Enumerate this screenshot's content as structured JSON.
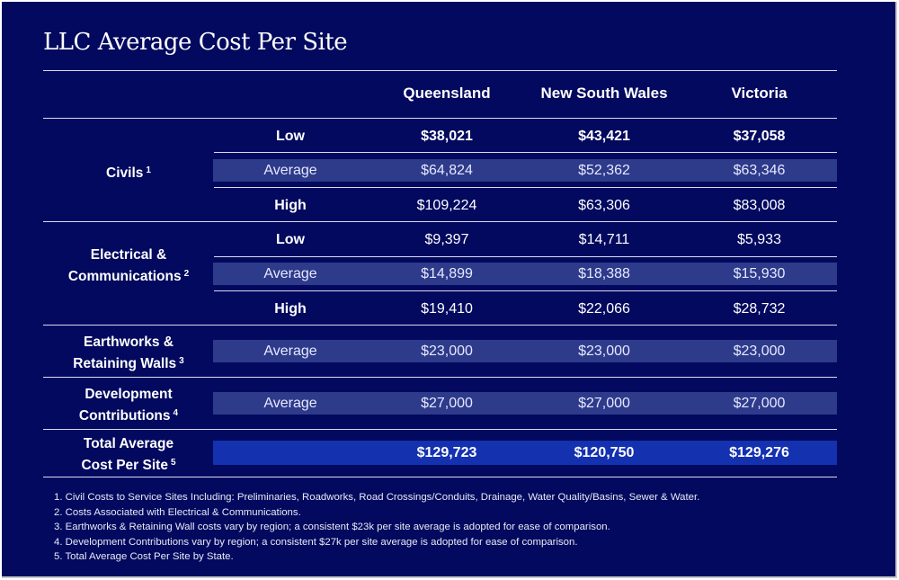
{
  "title": "LLC Average Cost Per Site",
  "columns": [
    "Queensland",
    "New South Wales",
    "Victoria"
  ],
  "groups": {
    "civils": {
      "label": "Civils",
      "note": "1"
    },
    "electrical": {
      "label_line1": "Electrical &",
      "label_line2": "Communications",
      "note": "2"
    },
    "earthworks": {
      "label_line1": "Earthworks &",
      "label_line2": "Retaining Walls",
      "note": "3"
    },
    "development": {
      "label_line1": "Development",
      "label_line2": "Contributions",
      "note": "4"
    },
    "total": {
      "label_line1": "Total Average",
      "label_line2": "Cost Per Site",
      "note": "5"
    }
  },
  "rows": [
    {
      "label": "Low",
      "values": [
        "$38,021",
        "$43,421",
        "$37,058"
      ]
    },
    {
      "label": "Average",
      "values": [
        "$64,824",
        "$52,362",
        "$63,346"
      ]
    },
    {
      "label": "High",
      "values": [
        "$109,224",
        "$63,306",
        "$83,008"
      ]
    },
    {
      "label": "Low",
      "values": [
        "$9,397",
        "$14,711",
        "$5,933"
      ]
    },
    {
      "label": "Average",
      "values": [
        "$14,899",
        "$18,388",
        "$15,930"
      ]
    },
    {
      "label": "High",
      "values": [
        "$19,410",
        "$22,066",
        "$28,732"
      ]
    },
    {
      "label": "Average",
      "values": [
        "$23,000",
        "$23,000",
        "$23,000"
      ]
    },
    {
      "label": "Average",
      "values": [
        "$27,000",
        "$27,000",
        "$27,000"
      ]
    }
  ],
  "total": {
    "values": [
      "$129,723",
      "$120,750",
      "$129,276"
    ]
  },
  "footnotes": [
    "1. Civil Costs to Service Sites Including: Preliminaries, Roadworks, Road Crossings/Conduits, Drainage, Water Quality/Basins, Sewer & Water.",
    "2. Costs Associated with Electrical & Communications.",
    "3. Earthworks & Retaining Wall costs vary by region; a consistent $23k per site average is adopted for ease of comparison.",
    "4. Development Contributions vary by region; a consistent $27k per site average is adopted for ease of comparison.",
    "5. Total Average Cost Per Site by State."
  ]
}
